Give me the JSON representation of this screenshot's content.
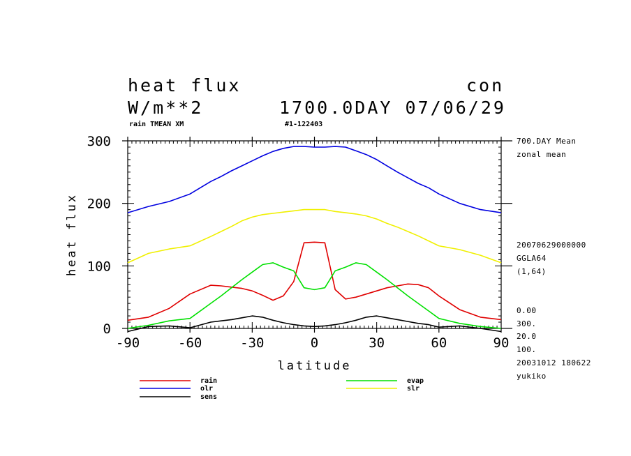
{
  "header": {
    "title_left": "heat flux",
    "title_right": "con",
    "units": "W/m**2",
    "day_date": "1700.0DAY 07/06/29",
    "var_info": "rain TMEAN XM",
    "run_id": "#1-122403"
  },
  "side_info": {
    "mean_label": "700.DAY Mean",
    "zonal": "zonal mean",
    "datetime": "20070629000000",
    "grid": "GGLA64",
    "index": "(1,64)",
    "v1": "0.00",
    "v2": "300.",
    "v3": "20.0",
    "v4": "100.",
    "stamp": "20031012 180622",
    "user": "yukiko"
  },
  "chart_data": {
    "type": "line",
    "xlabel": "latitude",
    "ylabel": "heat flux",
    "xlim": [
      -90,
      90
    ],
    "ylim": [
      0,
      300
    ],
    "xticks": [
      -90,
      -60,
      -30,
      0,
      30,
      60,
      90
    ],
    "xtick_labels": [
      "-90",
      "-60",
      "-30",
      "0",
      "30",
      "60",
      "90"
    ],
    "yticks": [
      0,
      100,
      200,
      300
    ],
    "ytick_labels": [
      "0",
      "100",
      "200",
      "300"
    ],
    "grid": false,
    "legend_position": "bottom",
    "x": [
      -90,
      -80,
      -70,
      -60,
      -50,
      -45,
      -40,
      -35,
      -30,
      -25,
      -20,
      -15,
      -10,
      -5,
      0,
      5,
      10,
      15,
      20,
      25,
      30,
      35,
      40,
      45,
      50,
      55,
      60,
      70,
      80,
      90
    ],
    "series": [
      {
        "name": "rain",
        "color": "#e00000",
        "values": [
          13,
          18,
          32,
          55,
          69,
          68,
          66,
          64,
          60,
          53,
          45,
          52,
          75,
          137,
          138,
          137,
          62,
          47,
          50,
          55,
          60,
          65,
          68,
          71,
          70,
          65,
          52,
          30,
          18,
          14
        ]
      },
      {
        "name": "olr",
        "color": "#0000e0",
        "values": [
          185,
          195,
          203,
          215,
          235,
          243,
          252,
          260,
          268,
          276,
          283,
          288,
          291,
          291,
          290,
          290,
          291,
          290,
          284,
          278,
          270,
          260,
          250,
          241,
          232,
          225,
          215,
          200,
          190,
          185
        ]
      },
      {
        "name": "sens",
        "color": "#000000",
        "values": [
          -5,
          3,
          4,
          1,
          10,
          12,
          14,
          17,
          20,
          18,
          13,
          9,
          6,
          4,
          3,
          4,
          6,
          9,
          13,
          18,
          20,
          17,
          14,
          11,
          8,
          6,
          2,
          4,
          0,
          -5
        ]
      },
      {
        "name": "evap",
        "color": "#00e000",
        "values": [
          0,
          5,
          12,
          16,
          40,
          52,
          65,
          78,
          90,
          102,
          105,
          98,
          92,
          65,
          62,
          65,
          92,
          98,
          105,
          102,
          90,
          78,
          65,
          52,
          40,
          28,
          16,
          8,
          3,
          0
        ]
      },
      {
        "name": "slr",
        "color": "#f0f000",
        "values": [
          105,
          120,
          127,
          132,
          147,
          155,
          163,
          172,
          178,
          182,
          184,
          186,
          188,
          190,
          190,
          190,
          187,
          185,
          183,
          180,
          175,
          168,
          162,
          155,
          148,
          140,
          132,
          126,
          117,
          105
        ]
      }
    ]
  }
}
